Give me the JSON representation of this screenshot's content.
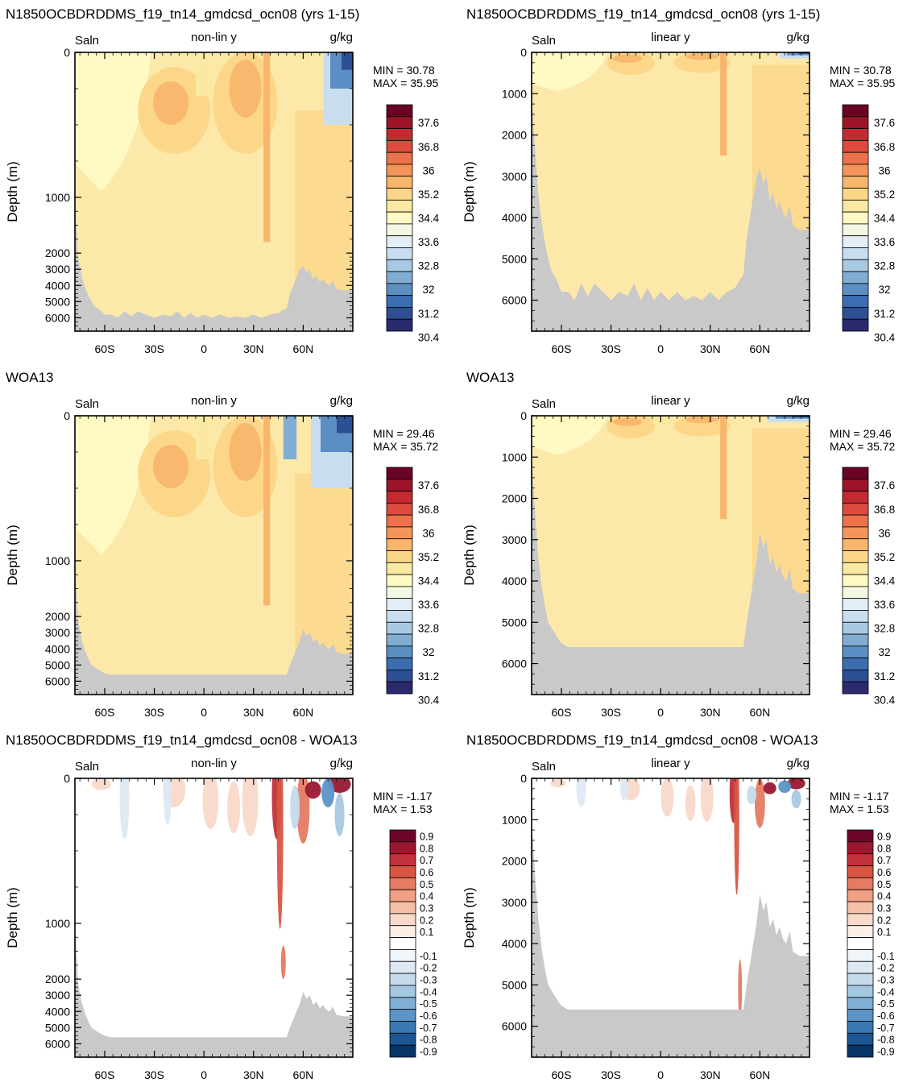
{
  "colors": {
    "land": "#c9c9c9",
    "salinity_levels": [
      "#2c2a6e",
      "#2d4f94",
      "#3b6db0",
      "#5b8ec3",
      "#82add3",
      "#a7c9e3",
      "#c8def0",
      "#e3eef5",
      "#f3f8e1",
      "#fff9c4",
      "#fbe9a3",
      "#fcd688",
      "#f8b66d",
      "#f3955a",
      "#eb724b",
      "#dd4a3e",
      "#c32b31",
      "#9c1428",
      "#6b0325"
    ],
    "diff_levels": [
      "#073566",
      "#1e5594",
      "#3a78b3",
      "#5b95c6",
      "#80b0d5",
      "#a6c9e2",
      "#c4dbed",
      "#dde9f3",
      "#eff5f9",
      "#ffffff",
      "#fcede7",
      "#f9d9ca",
      "#f5c0a7",
      "#f0a084",
      "#e57b63",
      "#d85544",
      "#c1323a",
      "#9a1830",
      "#6c0526"
    ],
    "ocean_fill": "#fce9a9"
  },
  "panels": [
    {
      "id": "p1",
      "title": "N1850OCBDRDDMS_f19_tn14_gmdcsd_ocn08 (yrs 1-15)",
      "var_label": "Saln",
      "scale_label": "non-lin y",
      "units": "g/kg",
      "min_text": "MIN =  30.78",
      "max_text": "MAX =  35.95",
      "ylabel": "Depth (m)",
      "yticks": [
        "0",
        "1000",
        "2000",
        "3000",
        "4000",
        "5000",
        "6000"
      ],
      "xticks": [
        "60S",
        "30S",
        "0",
        "30N",
        "60N"
      ],
      "colorbar_labels": [
        "37.6",
        "36.8",
        "36",
        "35.2",
        "34.4",
        "33.6",
        "32.8",
        "32",
        "31.2",
        "30.4"
      ]
    },
    {
      "id": "p2",
      "title": "N1850OCBDRDDMS_f19_tn14_gmdcsd_ocn08 (yrs 1-15)",
      "var_label": "Saln",
      "scale_label": "linear y",
      "units": "g/kg",
      "min_text": "MIN =  30.78",
      "max_text": "MAX =  35.95",
      "ylabel": "Depth (m)",
      "yticks": [
        "0",
        "1000",
        "2000",
        "3000",
        "4000",
        "5000",
        "6000"
      ],
      "xticks": [
        "60S",
        "30S",
        "0",
        "30N",
        "60N"
      ],
      "colorbar_labels": [
        "37.6",
        "36.8",
        "36",
        "35.2",
        "34.4",
        "33.6",
        "32.8",
        "32",
        "31.2",
        "30.4"
      ]
    },
    {
      "id": "p3",
      "title": "WOA13",
      "var_label": "Saln",
      "scale_label": "non-lin y",
      "units": "g/kg",
      "min_text": "MIN =  29.46",
      "max_text": "MAX =  35.72",
      "ylabel": "Depth (m)",
      "yticks": [
        "0",
        "1000",
        "2000",
        "3000",
        "4000",
        "5000",
        "6000"
      ],
      "xticks": [
        "60S",
        "30S",
        "0",
        "30N",
        "60N"
      ],
      "colorbar_labels": [
        "37.6",
        "36.8",
        "36",
        "35.2",
        "34.4",
        "33.6",
        "32.8",
        "32",
        "31.2",
        "30.4"
      ]
    },
    {
      "id": "p4",
      "title": "WOA13",
      "var_label": "Saln",
      "scale_label": "linear y",
      "units": "g/kg",
      "min_text": "MIN =  29.46",
      "max_text": "MAX =  35.72",
      "ylabel": "Depth (m)",
      "yticks": [
        "0",
        "1000",
        "2000",
        "3000",
        "4000",
        "5000",
        "6000"
      ],
      "xticks": [
        "60S",
        "30S",
        "0",
        "30N",
        "60N"
      ],
      "colorbar_labels": [
        "37.6",
        "36.8",
        "36",
        "35.2",
        "34.4",
        "33.6",
        "32.8",
        "32",
        "31.2",
        "30.4"
      ]
    },
    {
      "id": "p5",
      "title": "N1850OCBDRDDMS_f19_tn14_gmdcsd_ocn08 - WOA13",
      "var_label": "Saln",
      "scale_label": "non-lin y",
      "units": "g/kg",
      "min_text": "MIN = -1.17",
      "max_text": "MAX =  1.53",
      "ylabel": "Depth (m)",
      "yticks": [
        "0",
        "1000",
        "2000",
        "3000",
        "4000",
        "5000",
        "6000"
      ],
      "xticks": [
        "60S",
        "30S",
        "0",
        "30N",
        "60N"
      ],
      "colorbar_labels": [
        "0.9",
        "0.8",
        "0.7",
        "0.6",
        "0.5",
        "0.4",
        "0.3",
        "0.2",
        "0.1",
        "-0.1",
        "-0.2",
        "-0.3",
        "-0.4",
        "-0.5",
        "-0.6",
        "-0.7",
        "-0.8",
        "-0.9"
      ]
    },
    {
      "id": "p6",
      "title": "N1850OCBDRDDMS_f19_tn14_gmdcsd_ocn08 - WOA13",
      "var_label": "Saln",
      "scale_label": "linear y",
      "units": "g/kg",
      "min_text": "MIN = -1.17",
      "max_text": "MAX =  1.53",
      "ylabel": "Depth (m)",
      "yticks": [
        "0",
        "1000",
        "2000",
        "3000",
        "4000",
        "5000",
        "6000"
      ],
      "xticks": [
        "60S",
        "30S",
        "0",
        "30N",
        "60N"
      ],
      "colorbar_labels": [
        "0.9",
        "0.8",
        "0.7",
        "0.6",
        "0.5",
        "0.4",
        "0.3",
        "0.2",
        "0.1",
        "-0.1",
        "-0.2",
        "-0.3",
        "-0.4",
        "-0.5",
        "-0.6",
        "-0.7",
        "-0.8",
        "-0.9"
      ]
    }
  ],
  "chart_data": [
    {
      "type": "heatmap",
      "title": "N1850OCBDRDDMS_f19_tn14_gmdcsd_ocn08 (yrs 1-15)",
      "variable": "Saln",
      "units": "g/kg",
      "ylabel": "Depth (m)",
      "y_scale": "non-lin y",
      "xticks": [
        "60S",
        "30S",
        "0",
        "30N",
        "60N"
      ],
      "yticks": [
        0,
        1000,
        2000,
        3000,
        4000,
        5000,
        6000
      ],
      "min": 30.78,
      "max": 35.95,
      "contour_levels": [
        30.4,
        31.2,
        32,
        32.8,
        33.6,
        34.4,
        35.2,
        36,
        36.8,
        37.6
      ]
    },
    {
      "type": "heatmap",
      "title": "N1850OCBDRDDMS_f19_tn14_gmdcsd_ocn08 (yrs 1-15)",
      "variable": "Saln",
      "units": "g/kg",
      "ylabel": "Depth (m)",
      "y_scale": "linear y",
      "xticks": [
        "60S",
        "30S",
        "0",
        "30N",
        "60N"
      ],
      "yticks": [
        0,
        1000,
        2000,
        3000,
        4000,
        5000,
        6000
      ],
      "min": 30.78,
      "max": 35.95,
      "contour_levels": [
        30.4,
        31.2,
        32,
        32.8,
        33.6,
        34.4,
        35.2,
        36,
        36.8,
        37.6
      ]
    },
    {
      "type": "heatmap",
      "title": "WOA13",
      "variable": "Saln",
      "units": "g/kg",
      "ylabel": "Depth (m)",
      "y_scale": "non-lin y",
      "xticks": [
        "60S",
        "30S",
        "0",
        "30N",
        "60N"
      ],
      "yticks": [
        0,
        1000,
        2000,
        3000,
        4000,
        5000,
        6000
      ],
      "min": 29.46,
      "max": 35.72,
      "contour_levels": [
        30.4,
        31.2,
        32,
        32.8,
        33.6,
        34.4,
        35.2,
        36,
        36.8,
        37.6
      ]
    },
    {
      "type": "heatmap",
      "title": "WOA13",
      "variable": "Saln",
      "units": "g/kg",
      "ylabel": "Depth (m)",
      "y_scale": "linear y",
      "xticks": [
        "60S",
        "30S",
        "0",
        "30N",
        "60N"
      ],
      "yticks": [
        0,
        1000,
        2000,
        3000,
        4000,
        5000,
        6000
      ],
      "min": 29.46,
      "max": 35.72,
      "contour_levels": [
        30.4,
        31.2,
        32,
        32.8,
        33.6,
        34.4,
        35.2,
        36,
        36.8,
        37.6
      ]
    },
    {
      "type": "heatmap",
      "title": "N1850OCBDRDDMS_f19_tn14_gmdcsd_ocn08 - WOA13",
      "variable": "Saln",
      "units": "g/kg",
      "ylabel": "Depth (m)",
      "y_scale": "non-lin y",
      "xticks": [
        "60S",
        "30S",
        "0",
        "30N",
        "60N"
      ],
      "yticks": [
        0,
        1000,
        2000,
        3000,
        4000,
        5000,
        6000
      ],
      "min": -1.17,
      "max": 1.53,
      "contour_levels": [
        -0.9,
        -0.8,
        -0.7,
        -0.6,
        -0.5,
        -0.4,
        -0.3,
        -0.2,
        -0.1,
        0.1,
        0.2,
        0.3,
        0.4,
        0.5,
        0.6,
        0.7,
        0.8,
        0.9
      ]
    },
    {
      "type": "heatmap",
      "title": "N1850OCBDRDDMS_f19_tn14_gmdcsd_ocn08 - WOA13",
      "variable": "Saln",
      "units": "g/kg",
      "ylabel": "Depth (m)",
      "y_scale": "linear y",
      "xticks": [
        "60S",
        "30S",
        "0",
        "30N",
        "60N"
      ],
      "yticks": [
        0,
        1000,
        2000,
        3000,
        4000,
        5000,
        6000
      ],
      "min": -1.17,
      "max": 1.53,
      "contour_levels": [
        -0.9,
        -0.8,
        -0.7,
        -0.6,
        -0.5,
        -0.4,
        -0.3,
        -0.2,
        -0.1,
        0.1,
        0.2,
        0.3,
        0.4,
        0.5,
        0.6,
        0.7,
        0.8,
        0.9
      ]
    }
  ]
}
